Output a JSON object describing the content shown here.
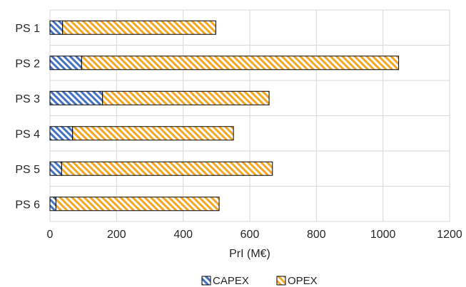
{
  "chart_data": {
    "type": "bar",
    "orientation": "horizontal",
    "stacked": true,
    "categories": [
      "PS 1",
      "PS 2",
      "PS 3",
      "PS 4",
      "PS 5",
      "PS 6"
    ],
    "series": [
      {
        "name": "CAPEX",
        "values": [
          38,
          95,
          158,
          68,
          35,
          18
        ],
        "color": "#4472c4",
        "pattern": "diagonal-stripes"
      },
      {
        "name": "OPEX",
        "values": [
          460,
          952,
          500,
          483,
          633,
          490
        ],
        "color": "#f5a623",
        "pattern": "diagonal-stripes"
      }
    ],
    "title": "",
    "xlabel": "PrI (M€)",
    "ylabel": "",
    "xlim": [
      0,
      1200
    ],
    "xticks": [
      0,
      200,
      400,
      600,
      800,
      1000,
      1200
    ],
    "grid": true,
    "legend_position": "bottom"
  }
}
